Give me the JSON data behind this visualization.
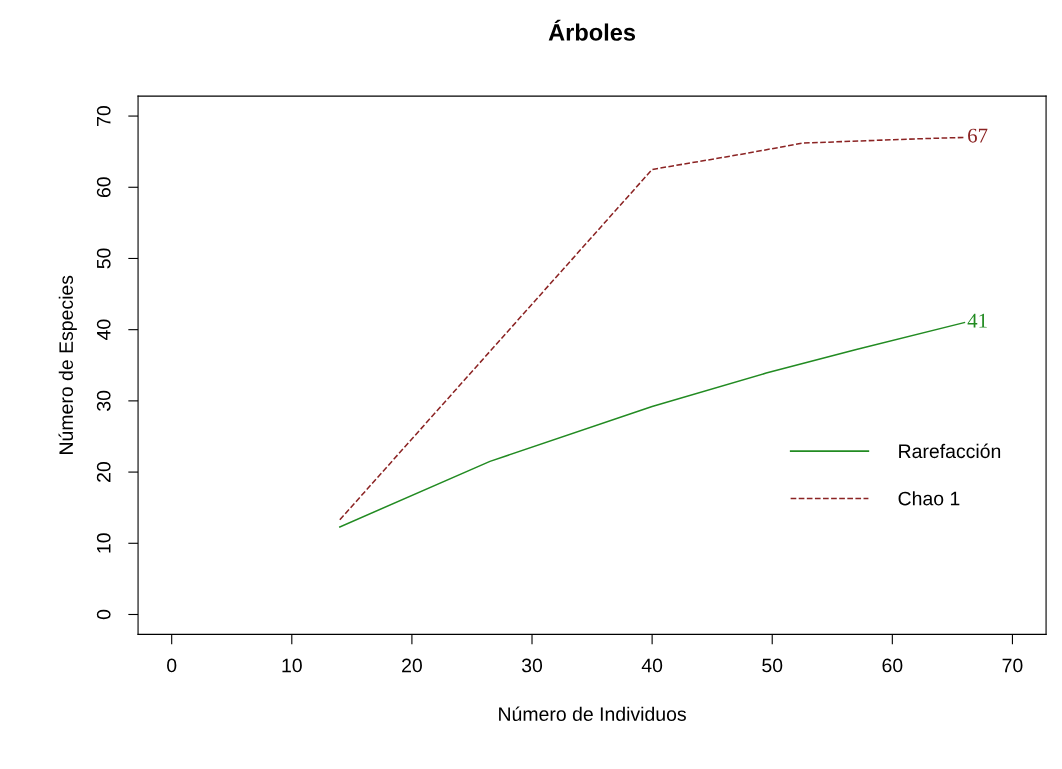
{
  "chart_data": {
    "type": "line",
    "title": "Árboles",
    "xlabel": "Número de Individuos",
    "ylabel": "Número de Especies",
    "series": [
      {
        "name": "Rarefacción",
        "color": "#228b22",
        "line_style": "solid",
        "x": [
          14,
          26.5,
          40,
          49.5,
          57,
          66
        ],
        "values": [
          12.3,
          21.5,
          29.2,
          33.9,
          37.2,
          41
        ]
      },
      {
        "name": "Chao 1",
        "color": "#8b2323",
        "line_style": "dashed",
        "x": [
          14,
          40,
          48,
          52.5,
          62,
          66
        ],
        "values": [
          13.3,
          62.5,
          64.8,
          66.2,
          66.8,
          67
        ]
      }
    ],
    "annotations": [
      {
        "text": "67",
        "x": 66,
        "y": 67
      },
      {
        "text": "41",
        "x": 66,
        "y": 41
      }
    ],
    "xlim": [
      -2.8,
      72.8
    ],
    "ylim": [
      -2.8,
      72.8
    ],
    "xticks": [
      0,
      10,
      20,
      30,
      40,
      50,
      60,
      70
    ],
    "yticks": [
      0,
      10,
      20,
      30,
      40,
      50,
      60,
      70
    ],
    "grid": false,
    "legend": "bottom right",
    "marker": "none"
  }
}
